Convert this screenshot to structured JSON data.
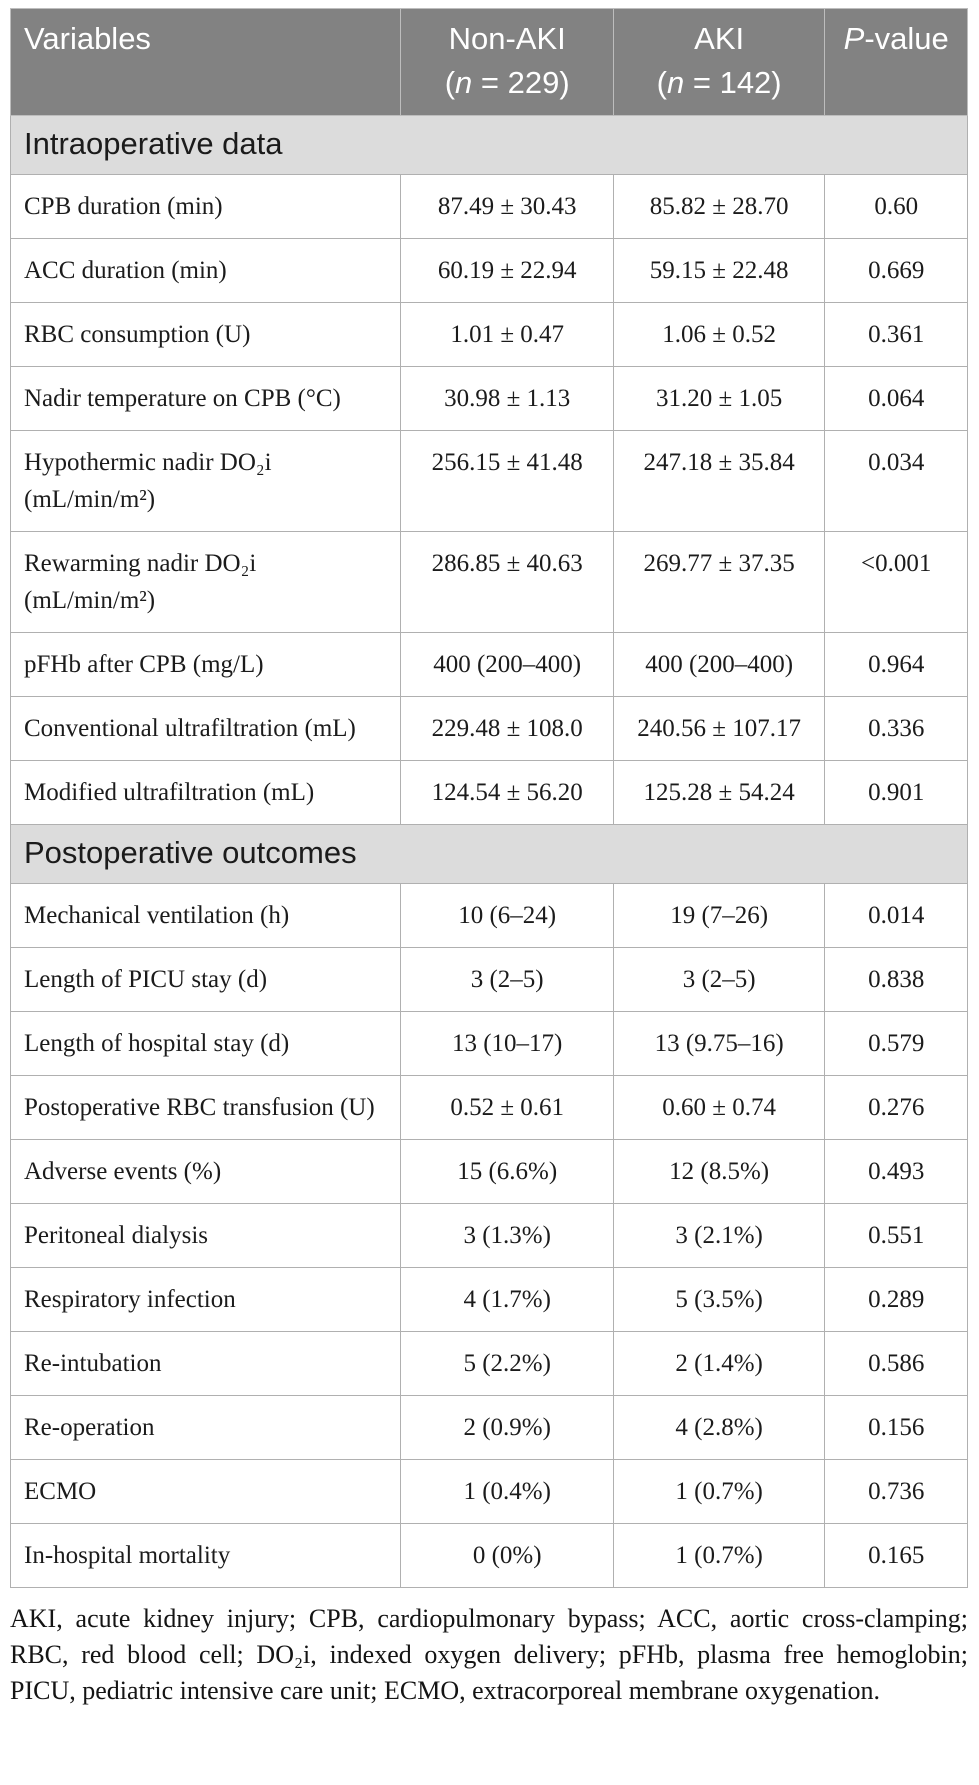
{
  "table": {
    "header": {
      "variables": "Variables",
      "groups": [
        {
          "name": "Non-AKI",
          "n_open": "(",
          "n_italic": "n",
          "n_rest": " = 229)"
        },
        {
          "name": "AKI",
          "n_open": "(",
          "n_italic": "n",
          "n_rest": " = 142)"
        }
      ],
      "pvalue_italic": "P",
      "pvalue_rest": "-value"
    },
    "sections": [
      {
        "title": "Intraoperative data",
        "rows": [
          {
            "label": "CPB duration (min)",
            "non_aki": "87.49 ± 30.43",
            "aki": "85.82 ± 28.70",
            "p": "0.60"
          },
          {
            "label": "ACC duration (min)",
            "non_aki": "60.19 ± 22.94",
            "aki": "59.15 ± 22.48",
            "p": "0.669"
          },
          {
            "label": "RBC consumption (U)",
            "non_aki": "1.01 ± 0.47",
            "aki": "1.06 ± 0.52",
            "p": "0.361"
          },
          {
            "label": "Nadir temperature on CPB (°C)",
            "non_aki": "30.98 ± 1.13",
            "aki": "31.20 ± 1.05",
            "p": "0.064"
          },
          {
            "label": "Hypothermic nadir DO₂i (mL/min/m²)",
            "non_aki": "256.15 ± 41.48",
            "aki": "247.18 ± 35.84",
            "p": "0.034"
          },
          {
            "label": "Rewarming nadir DO₂i (mL/min/m²)",
            "non_aki": "286.85 ± 40.63",
            "aki": "269.77 ± 37.35",
            "p": "<0.001"
          },
          {
            "label": "pFHb after CPB (mg/L)",
            "non_aki": "400 (200–400)",
            "aki": "400 (200–400)",
            "p": "0.964"
          },
          {
            "label": "Conventional ultrafiltration (mL)",
            "non_aki": "229.48 ± 108.0",
            "aki": "240.56 ± 107.17",
            "p": "0.336"
          },
          {
            "label": "Modified ultrafiltration (mL)",
            "non_aki": "124.54 ± 56.20",
            "aki": "125.28 ± 54.24",
            "p": "0.901"
          }
        ]
      },
      {
        "title": "Postoperative outcomes",
        "rows": [
          {
            "label": "Mechanical ventilation (h)",
            "non_aki": "10 (6–24)",
            "aki": "19 (7–26)",
            "p": "0.014"
          },
          {
            "label": "Length of PICU stay (d)",
            "non_aki": "3 (2–5)",
            "aki": "3 (2–5)",
            "p": "0.838"
          },
          {
            "label": "Length of hospital stay (d)",
            "non_aki": "13 (10–17)",
            "aki": "13 (9.75–16)",
            "p": "0.579"
          },
          {
            "label": "Postoperative RBC transfusion (U)",
            "non_aki": "0.52 ± 0.61",
            "aki": "0.60 ± 0.74",
            "p": "0.276"
          },
          {
            "label": "Adverse events (%)",
            "non_aki": "15 (6.6%)",
            "aki": "12 (8.5%)",
            "p": "0.493"
          },
          {
            "label": "Peritoneal dialysis",
            "non_aki": "3 (1.3%)",
            "aki": "3 (2.1%)",
            "p": "0.551"
          },
          {
            "label": "Respiratory infection",
            "non_aki": "4 (1.7%)",
            "aki": "5 (3.5%)",
            "p": "0.289"
          },
          {
            "label": "Re-intubation",
            "non_aki": "5 (2.2%)",
            "aki": "2 (1.4%)",
            "p": "0.586"
          },
          {
            "label": "Re-operation",
            "non_aki": "2 (0.9%)",
            "aki": "4 (2.8%)",
            "p": "0.156"
          },
          {
            "label": "ECMO",
            "non_aki": "1 (0.4%)",
            "aki": "1 (0.7%)",
            "p": "0.736"
          },
          {
            "label": "In-hospital mortality",
            "non_aki": "0 (0%)",
            "aki": "1 (0.7%)",
            "p": "0.165"
          }
        ]
      }
    ],
    "footnote": "AKI, acute kidney injury; CPB, cardiopulmonary bypass; ACC, aortic cross-clamping; RBC, red blood cell; DO₂i, indexed oxygen delivery; pFHb, plasma free hemoglobin; PICU, pediatric intensive care unit; ECMO, extracorporeal membrane oxygenation."
  },
  "colors": {
    "header_bg": "#828282",
    "header_text": "#ffffff",
    "section_bg": "#dcdcdc",
    "border": "#b0b0b0",
    "body_text": "#1b1b1b"
  }
}
